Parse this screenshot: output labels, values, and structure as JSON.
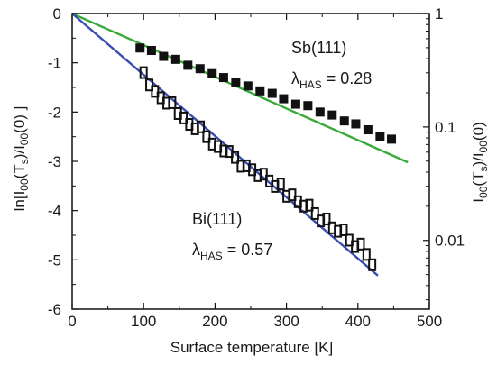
{
  "chart_data": {
    "type": "scatter",
    "xlabel": "Surface temperature [K]",
    "ylabel_left": {
      "pre": "ln[I",
      "sub1": "00",
      "mid1": "(T",
      "sub2": "s",
      "mid2": ")/I",
      "sub3": "00",
      "post": "(0) ]"
    },
    "ylabel_right": {
      "pre": "I",
      "sub1": "00",
      "mid1": "(T",
      "sub2": "s",
      "mid2": ")/I",
      "sub3": "00",
      "post": "(0)"
    },
    "xlim": [
      0,
      500
    ],
    "ylim": [
      -6,
      0
    ],
    "xticks": [
      0,
      100,
      200,
      300,
      400,
      500
    ],
    "yticks": [
      0,
      -1,
      -2,
      -3,
      -4,
      -5,
      -6
    ],
    "right_axis": {
      "scale": "log",
      "ticks": [
        {
          "value": 1,
          "label": "1"
        },
        {
          "value": 0.1,
          "label": "0.1"
        },
        {
          "value": 0.01,
          "label": "0.01"
        }
      ]
    },
    "grid": false,
    "series": [
      {
        "name": "Sb(111)",
        "marker": "filled-square",
        "color": "#111111",
        "x": [
          95,
          111,
          128,
          145,
          162,
          179,
          196,
          212,
          229,
          246,
          263,
          280,
          296,
          313,
          330,
          347,
          364,
          381,
          397,
          414,
          431,
          447
        ],
        "y": [
          -0.7,
          -0.75,
          -0.87,
          -0.93,
          -1.05,
          -1.12,
          -1.22,
          -1.3,
          -1.39,
          -1.47,
          -1.57,
          -1.62,
          -1.73,
          -1.84,
          -1.87,
          -2.0,
          -2.06,
          -2.18,
          -2.24,
          -2.36,
          -2.49,
          -2.55
        ],
        "fit": {
          "label": "λHAS = 0.28",
          "color": "#3aaa3a",
          "x": [
            0,
            470
          ],
          "y": [
            0,
            -3.02
          ]
        }
      },
      {
        "name": "Bi(111)",
        "marker": "open-square",
        "color": "#111111",
        "x": [
          100,
          108,
          116,
          124,
          132,
          140,
          148,
          156,
          164,
          172,
          180,
          188,
          196,
          204,
          212,
          220,
          228,
          236,
          244,
          252,
          260,
          268,
          276,
          284,
          292,
          300,
          308,
          316,
          324,
          332,
          340,
          348,
          356,
          364,
          372,
          380,
          388,
          396,
          404,
          412,
          420
        ],
        "y": [
          -1.2,
          -1.45,
          -1.58,
          -1.71,
          -1.82,
          -1.81,
          -2.03,
          -2.12,
          -2.25,
          -2.34,
          -2.3,
          -2.5,
          -2.65,
          -2.7,
          -2.79,
          -2.8,
          -2.92,
          -3.1,
          -3.09,
          -3.17,
          -3.29,
          -3.26,
          -3.4,
          -3.51,
          -3.46,
          -3.71,
          -3.68,
          -3.82,
          -3.91,
          -3.89,
          -4.06,
          -4.21,
          -4.17,
          -4.35,
          -4.42,
          -4.39,
          -4.6,
          -4.73,
          -4.68,
          -4.89,
          -5.1
        ],
        "fit": {
          "label": "λHAS = 0.57",
          "color": "#3a4db0",
          "x": [
            0,
            428
          ],
          "y": [
            0,
            -5.32
          ]
        }
      }
    ],
    "annotations": [
      {
        "name": "sb-material-label",
        "text": "Sb(111)"
      },
      {
        "name": "sb-lambda-label",
        "symbol": "λ",
        "sub": "HAS",
        "value": " = 0.28"
      },
      {
        "name": "bi-material-label",
        "text": "Bi(111)"
      },
      {
        "name": "bi-lambda-label",
        "symbol": "λ",
        "sub": "HAS",
        "value": " = 0.57"
      }
    ]
  }
}
